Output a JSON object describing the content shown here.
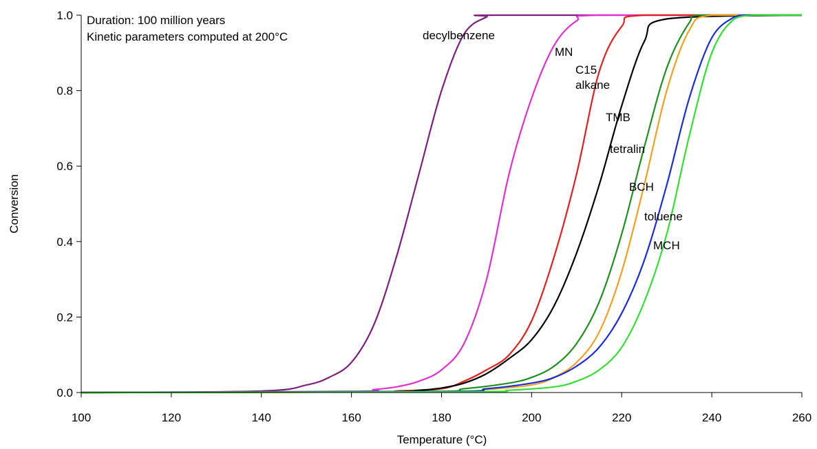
{
  "chart_data": {
    "type": "line",
    "xlabel": "Temperature (°C)",
    "ylabel": "Conversion",
    "xlim": [
      100,
      260
    ],
    "ylim": [
      0,
      1
    ],
    "xticks": [
      100,
      120,
      140,
      160,
      180,
      200,
      220,
      240,
      260
    ],
    "yticks": [
      0,
      0.2,
      0.4,
      0.6,
      0.8,
      1.0
    ],
    "xtick_labels": [
      "100",
      "120",
      "140",
      "160",
      "180",
      "200",
      "220",
      "240",
      "260"
    ],
    "ytick_labels": [
      "0.0",
      "0.2",
      "0.4",
      "0.6",
      "0.8",
      "1.0"
    ],
    "grid": false,
    "legend": "none",
    "annotations": {
      "line1": "Duration: 100 million years",
      "line2": "Kinetic parameters computed at 200°C"
    },
    "series": [
      {
        "name": "decylbenzene",
        "color": "#7b1f7b",
        "label_lines": [
          "decylbenzene"
        ],
        "x": [
          100,
          140,
          150,
          155,
          160,
          165,
          170,
          175,
          180,
          185,
          190,
          193,
          260
        ],
        "y": [
          0.0,
          0.004,
          0.02,
          0.04,
          0.08,
          0.18,
          0.36,
          0.58,
          0.8,
          0.95,
          0.995,
          1.0,
          1.0
        ]
      },
      {
        "name": "MN",
        "color": "#e030d0",
        "label_lines": [
          "MN"
        ],
        "x": [
          100,
          160,
          165,
          170,
          175,
          180,
          185,
          190,
          195,
          200,
          205,
          210,
          215,
          260
        ],
        "y": [
          0.0,
          0.003,
          0.008,
          0.015,
          0.03,
          0.06,
          0.13,
          0.3,
          0.58,
          0.78,
          0.92,
          0.985,
          1.0,
          1.0
        ]
      },
      {
        "name": "C15 alkane",
        "color": "#e02020",
        "label_lines": [
          "C15",
          "alkane"
        ],
        "x": [
          100,
          165,
          170,
          180,
          185,
          190,
          195,
          200,
          205,
          210,
          215,
          220,
          225,
          260
        ],
        "y": [
          0.0,
          0.002,
          0.004,
          0.01,
          0.03,
          0.06,
          0.1,
          0.19,
          0.36,
          0.58,
          0.85,
          0.97,
          1.0,
          1.0
        ]
      },
      {
        "name": "TMB",
        "color": "#000000",
        "label_lines": [
          "TMB"
        ],
        "x": [
          100,
          165,
          175,
          180,
          185,
          190,
          195,
          200,
          205,
          210,
          215,
          220,
          225,
          230,
          260
        ],
        "y": [
          0.0,
          0.002,
          0.006,
          0.012,
          0.025,
          0.05,
          0.09,
          0.14,
          0.23,
          0.37,
          0.55,
          0.76,
          0.93,
          0.99,
          1.0
        ]
      },
      {
        "name": "tetralin",
        "color": "#1f8f1f",
        "label_lines": [
          "tetralin"
        ],
        "x": [
          100,
          175,
          185,
          195,
          200,
          205,
          210,
          215,
          220,
          225,
          230,
          235,
          238,
          260
        ],
        "y": [
          0.0,
          0.002,
          0.01,
          0.025,
          0.04,
          0.07,
          0.13,
          0.24,
          0.42,
          0.65,
          0.86,
          0.98,
          1.0,
          1.0
        ]
      },
      {
        "name": "BCH",
        "color": "#f0a020",
        "label_lines": [
          "BCH"
        ],
        "x": [
          100,
          180,
          190,
          200,
          205,
          210,
          215,
          220,
          225,
          230,
          235,
          240,
          260
        ],
        "y": [
          0.0,
          0.002,
          0.008,
          0.02,
          0.04,
          0.08,
          0.16,
          0.32,
          0.55,
          0.8,
          0.96,
          1.0,
          1.0
        ]
      },
      {
        "name": "toluene",
        "color": "#1a2bd8",
        "label_lines": [
          "toluene"
        ],
        "x": [
          100,
          180,
          190,
          200,
          205,
          210,
          215,
          220,
          225,
          230,
          235,
          240,
          245,
          248,
          260
        ],
        "y": [
          0.0,
          0.003,
          0.01,
          0.025,
          0.04,
          0.07,
          0.12,
          0.21,
          0.35,
          0.55,
          0.78,
          0.94,
          0.995,
          1.0,
          1.0
        ]
      },
      {
        "name": "MCH",
        "color": "#33dd33",
        "label_lines": [
          "MCH"
        ],
        "x": [
          100,
          185,
          195,
          205,
          210,
          215,
          220,
          225,
          230,
          235,
          240,
          245,
          250,
          260
        ],
        "y": [
          0.0,
          0.002,
          0.006,
          0.015,
          0.03,
          0.06,
          0.12,
          0.24,
          0.42,
          0.68,
          0.9,
          0.99,
          1.0,
          1.0
        ]
      }
    ]
  }
}
